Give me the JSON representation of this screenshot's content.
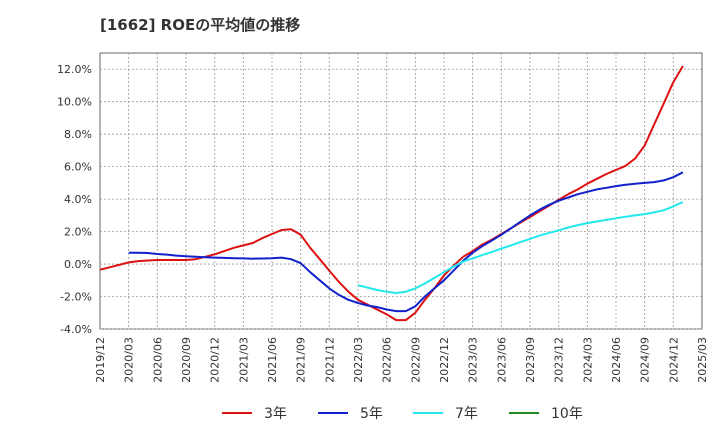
{
  "chart_data": {
    "type": "line",
    "title": "[1662]  ROEの平均値の推移",
    "xlabel": "",
    "ylabel": "",
    "ylim": [
      -4.0,
      13.0
    ],
    "y_ticks": [
      -4.0,
      -2.0,
      0.0,
      2.0,
      4.0,
      6.0,
      8.0,
      10.0,
      12.0
    ],
    "y_tick_labels": [
      "-4.0%",
      "-2.0%",
      "0.0%",
      "2.0%",
      "4.0%",
      "6.0%",
      "8.0%",
      "10.0%",
      "12.0%"
    ],
    "x_range": [
      "2019-12",
      "2025-03"
    ],
    "x_ticks": [
      "2019/12",
      "2020/03",
      "2020/06",
      "2020/09",
      "2020/12",
      "2021/03",
      "2021/06",
      "2021/09",
      "2021/12",
      "2022/03",
      "2022/06",
      "2022/09",
      "2022/12",
      "2023/03",
      "2023/06",
      "2023/09",
      "2023/12",
      "2024/03",
      "2024/06",
      "2024/09",
      "2024/12",
      "2025/03"
    ],
    "grid": true,
    "legend_position": "bottom",
    "series": [
      {
        "name": "3年",
        "color": "#dd1111",
        "points": [
          [
            "2019-12",
            -0.35
          ],
          [
            "2020-01",
            -0.2
          ],
          [
            "2020-02",
            -0.05
          ],
          [
            "2020-03",
            0.1
          ],
          [
            "2020-04",
            0.18
          ],
          [
            "2020-05",
            0.22
          ],
          [
            "2020-06",
            0.25
          ],
          [
            "2020-07",
            0.25
          ],
          [
            "2020-08",
            0.25
          ],
          [
            "2020-09",
            0.25
          ],
          [
            "2020-10",
            0.3
          ],
          [
            "2020-11",
            0.45
          ],
          [
            "2020-12",
            0.6
          ],
          [
            "2021-01",
            0.8
          ],
          [
            "2021-02",
            1.0
          ],
          [
            "2021-03",
            1.15
          ],
          [
            "2021-04",
            1.3
          ],
          [
            "2021-05",
            1.6
          ],
          [
            "2021-06",
            1.85
          ],
          [
            "2021-07",
            2.1
          ],
          [
            "2021-08",
            2.15
          ],
          [
            "2021-09",
            1.8
          ],
          [
            "2021-10",
            1.0
          ],
          [
            "2021-11",
            0.3
          ],
          [
            "2021-12",
            -0.4
          ],
          [
            "2022-01",
            -1.1
          ],
          [
            "2022-02",
            -1.7
          ],
          [
            "2022-03",
            -2.2
          ],
          [
            "2022-04",
            -2.5
          ],
          [
            "2022-05",
            -2.8
          ],
          [
            "2022-06",
            -3.1
          ],
          [
            "2022-07",
            -3.45
          ],
          [
            "2022-08",
            -3.45
          ],
          [
            "2022-09",
            -3.0
          ],
          [
            "2022-10",
            -2.2
          ],
          [
            "2022-11",
            -1.5
          ],
          [
            "2022-12",
            -0.7
          ],
          [
            "2023-01",
            -0.1
          ],
          [
            "2023-02",
            0.45
          ],
          [
            "2023-03",
            0.8
          ],
          [
            "2023-04",
            1.2
          ],
          [
            "2023-05",
            1.5
          ],
          [
            "2023-06",
            1.85
          ],
          [
            "2023-07",
            2.2
          ],
          [
            "2023-08",
            2.55
          ],
          [
            "2023-09",
            2.9
          ],
          [
            "2023-10",
            3.25
          ],
          [
            "2023-11",
            3.6
          ],
          [
            "2023-12",
            3.95
          ],
          [
            "2024-01",
            4.3
          ],
          [
            "2024-02",
            4.6
          ],
          [
            "2024-03",
            4.95
          ],
          [
            "2024-04",
            5.25
          ],
          [
            "2024-05",
            5.55
          ],
          [
            "2024-06",
            5.8
          ],
          [
            "2024-07",
            6.05
          ],
          [
            "2024-08",
            6.5
          ],
          [
            "2024-09",
            7.3
          ],
          [
            "2024-10",
            8.6
          ],
          [
            "2024-11",
            9.9
          ],
          [
            "2024-12",
            11.2
          ],
          [
            "2025-01",
            12.2
          ]
        ]
      },
      {
        "name": "5年",
        "color": "#1122cc",
        "points": [
          [
            "2020-03",
            0.7
          ],
          [
            "2020-04",
            0.7
          ],
          [
            "2020-05",
            0.68
          ],
          [
            "2020-06",
            0.62
          ],
          [
            "2020-07",
            0.58
          ],
          [
            "2020-08",
            0.52
          ],
          [
            "2020-09",
            0.48
          ],
          [
            "2020-10",
            0.45
          ],
          [
            "2020-11",
            0.42
          ],
          [
            "2020-12",
            0.4
          ],
          [
            "2021-01",
            0.38
          ],
          [
            "2021-02",
            0.36
          ],
          [
            "2021-03",
            0.35
          ],
          [
            "2021-04",
            0.33
          ],
          [
            "2021-05",
            0.34
          ],
          [
            "2021-06",
            0.36
          ],
          [
            "2021-07",
            0.4
          ],
          [
            "2021-08",
            0.3
          ],
          [
            "2021-09",
            0.05
          ],
          [
            "2021-10",
            -0.5
          ],
          [
            "2021-11",
            -1.0
          ],
          [
            "2021-12",
            -1.5
          ],
          [
            "2022-01",
            -1.9
          ],
          [
            "2022-02",
            -2.2
          ],
          [
            "2022-03",
            -2.4
          ],
          [
            "2022-04",
            -2.55
          ],
          [
            "2022-05",
            -2.65
          ],
          [
            "2022-06",
            -2.8
          ],
          [
            "2022-07",
            -2.9
          ],
          [
            "2022-08",
            -2.9
          ],
          [
            "2022-09",
            -2.6
          ],
          [
            "2022-10",
            -2.0
          ],
          [
            "2022-11",
            -1.5
          ],
          [
            "2022-12",
            -1.0
          ],
          [
            "2023-01",
            -0.4
          ],
          [
            "2023-02",
            0.2
          ],
          [
            "2023-03",
            0.7
          ],
          [
            "2023-04",
            1.1
          ],
          [
            "2023-05",
            1.45
          ],
          [
            "2023-06",
            1.8
          ],
          [
            "2023-07",
            2.2
          ],
          [
            "2023-08",
            2.6
          ],
          [
            "2023-09",
            3.0
          ],
          [
            "2023-10",
            3.35
          ],
          [
            "2023-11",
            3.65
          ],
          [
            "2023-12",
            3.9
          ],
          [
            "2024-01",
            4.1
          ],
          [
            "2024-02",
            4.3
          ],
          [
            "2024-03",
            4.45
          ],
          [
            "2024-04",
            4.6
          ],
          [
            "2024-05",
            4.7
          ],
          [
            "2024-06",
            4.8
          ],
          [
            "2024-07",
            4.88
          ],
          [
            "2024-08",
            4.95
          ],
          [
            "2024-09",
            5.0
          ],
          [
            "2024-10",
            5.05
          ],
          [
            "2024-11",
            5.15
          ],
          [
            "2024-12",
            5.35
          ],
          [
            "2025-01",
            5.65
          ]
        ]
      },
      {
        "name": "7年",
        "color": "#22e8ee",
        "points": [
          [
            "2022-03",
            -1.3
          ],
          [
            "2022-04",
            -1.45
          ],
          [
            "2022-05",
            -1.6
          ],
          [
            "2022-06",
            -1.7
          ],
          [
            "2022-07",
            -1.78
          ],
          [
            "2022-08",
            -1.7
          ],
          [
            "2022-09",
            -1.5
          ],
          [
            "2022-10",
            -1.2
          ],
          [
            "2022-11",
            -0.85
          ],
          [
            "2022-12",
            -0.5
          ],
          [
            "2023-01",
            -0.15
          ],
          [
            "2023-02",
            0.15
          ],
          [
            "2023-03",
            0.35
          ],
          [
            "2023-04",
            0.55
          ],
          [
            "2023-05",
            0.75
          ],
          [
            "2023-06",
            0.95
          ],
          [
            "2023-07",
            1.15
          ],
          [
            "2023-08",
            1.35
          ],
          [
            "2023-09",
            1.55
          ],
          [
            "2023-10",
            1.75
          ],
          [
            "2023-11",
            1.92
          ],
          [
            "2023-12",
            2.08
          ],
          [
            "2024-01",
            2.25
          ],
          [
            "2024-02",
            2.4
          ],
          [
            "2024-03",
            2.52
          ],
          [
            "2024-04",
            2.62
          ],
          [
            "2024-05",
            2.72
          ],
          [
            "2024-06",
            2.82
          ],
          [
            "2024-07",
            2.92
          ],
          [
            "2024-08",
            3.0
          ],
          [
            "2024-09",
            3.08
          ],
          [
            "2024-10",
            3.18
          ],
          [
            "2024-11",
            3.32
          ],
          [
            "2024-12",
            3.55
          ],
          [
            "2025-01",
            3.82
          ]
        ]
      },
      {
        "name": "10年",
        "color": "#228822",
        "points": []
      }
    ]
  }
}
